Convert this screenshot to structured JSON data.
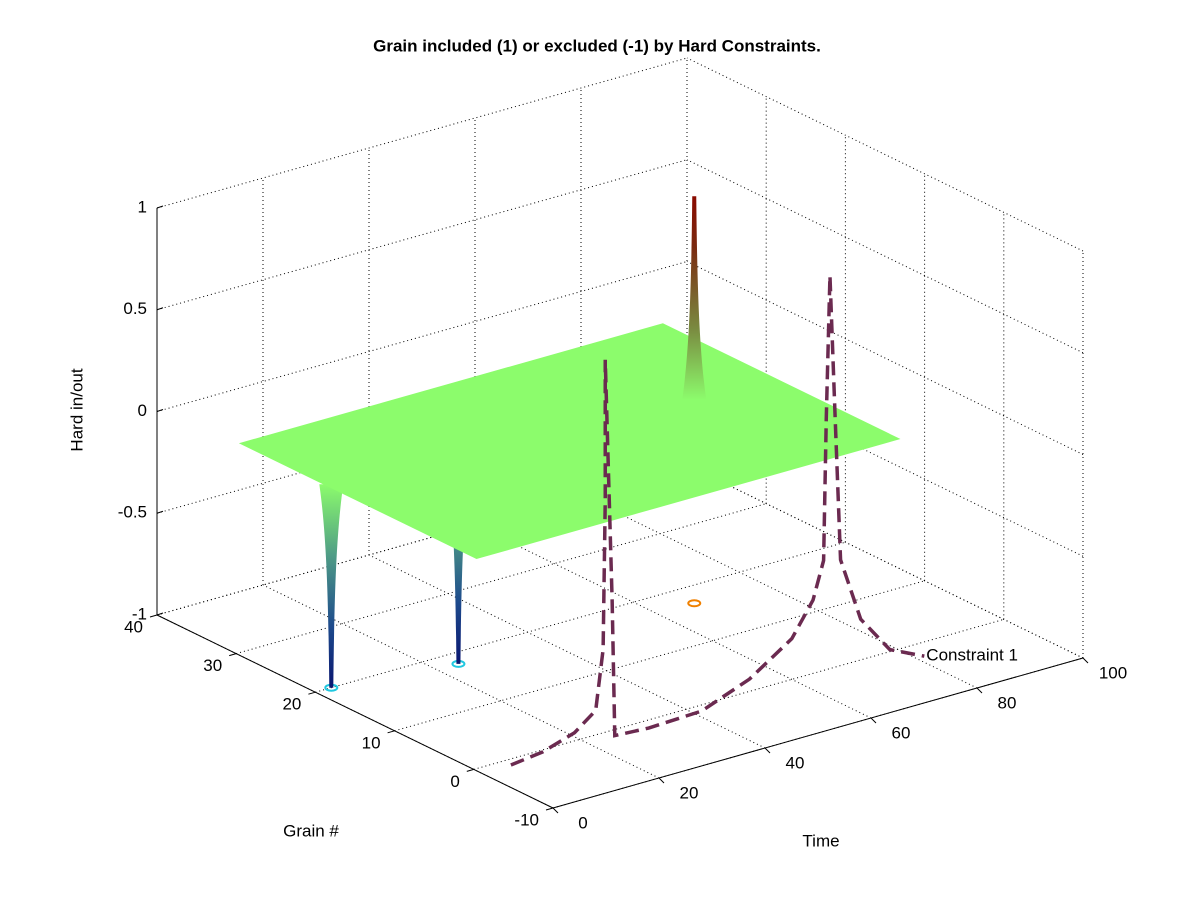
{
  "chart_data": {
    "type": "surface",
    "title": "Grain included (1) or excluded (-1) by Hard Constraints.",
    "xlabel": "Time",
    "ylabel": "Grain #",
    "zlabel": "Hard in/out",
    "xlim": [
      0,
      100
    ],
    "ylim": [
      -10,
      40
    ],
    "zlim": [
      -1,
      1
    ],
    "xticks": [
      0,
      20,
      40,
      60,
      80,
      100
    ],
    "yticks": [
      -10,
      0,
      10,
      20,
      30,
      40
    ],
    "zticks": [
      -1,
      -0.5,
      0,
      0.5,
      1
    ],
    "grid": true,
    "surface": {
      "x": [
        2,
        82
      ],
      "y": [
        1,
        31
      ],
      "z": 0,
      "color": "#8cfc6c"
    },
    "spikes": {
      "x": [
        3,
        24,
        67
      ],
      "y": [
        20,
        18,
        17
      ],
      "z": [
        -1,
        -1,
        1
      ]
    },
    "series": [
      {
        "name": "Constraint 1",
        "color": "#6b2a50",
        "y": 0,
        "x": [
          7,
          13,
          19,
          23,
          24.4,
          24.8,
          24.8,
          26.1,
          26.6,
          33,
          43,
          52,
          60,
          64,
          66,
          66.5,
          67.2,
          68.2,
          69.2,
          73,
          78.5,
          85
        ],
        "z": [
          -1.03,
          -1.01,
          -0.96,
          -0.88,
          -0.59,
          0.14,
          0.83,
          -0.36,
          -1.03,
          -1.04,
          -1.03,
          -0.94,
          -0.8,
          -0.64,
          -0.46,
          0.23,
          0.93,
          0.21,
          -0.48,
          -0.8,
          -0.99,
          -1.07
        ]
      }
    ]
  }
}
